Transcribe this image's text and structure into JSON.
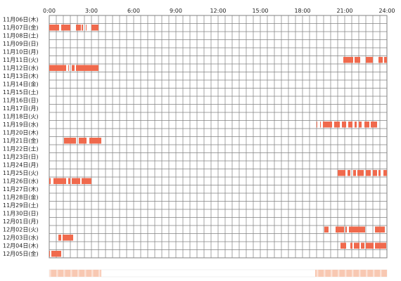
{
  "chart_data": {
    "type": "heatmap",
    "title": "",
    "x_ticks": [
      "0:00",
      "3:00",
      "6:00",
      "9:00",
      "12:00",
      "15:00",
      "18:00",
      "21:00",
      "24:00"
    ],
    "x_range": [
      0,
      24
    ],
    "rows": [
      "11月06日(木)",
      "11月07日(金)",
      "11月08日(土)",
      "11月09日(日)",
      "11月10日(月)",
      "11月11日(火)",
      "11月12日(水)",
      "11月13日(木)",
      "11月14日(金)",
      "11月15日(土)",
      "11月16日(日)",
      "11月17日(月)",
      "11月18日(火)",
      "11月19日(水)",
      "11月20日(木)",
      "11月21日(金)",
      "11月22日(土)",
      "11月23日(日)",
      "11月24日(月)",
      "11月25日(火)",
      "11月26日(水)",
      "11月27日(木)",
      "11月28日(金)",
      "11月29日(土)",
      "11月30日(日)",
      "12月01日(月)",
      "12月02日(火)",
      "12月03日(水)",
      "12月04日(木)",
      "12月05日(金)"
    ],
    "activity_hours": [
      [],
      [
        [
          0.0,
          0.7
        ],
        [
          0.85,
          1.5
        ],
        [
          1.9,
          2.25
        ],
        [
          2.3,
          2.4
        ],
        [
          2.6,
          2.65
        ],
        [
          3.0,
          3.5
        ]
      ],
      [],
      [],
      [],
      [
        [
          20.9,
          21.6
        ],
        [
          21.7,
          22.1
        ],
        [
          22.5,
          23.0
        ],
        [
          23.4,
          23.7
        ],
        [
          23.8,
          24.0
        ]
      ],
      [
        [
          0.0,
          1.2
        ],
        [
          1.35,
          1.4
        ],
        [
          1.6,
          1.8
        ],
        [
          1.9,
          3.5
        ]
      ],
      [],
      [],
      [],
      [],
      [],
      [],
      [
        [
          19.0,
          19.05
        ],
        [
          19.25,
          19.3
        ],
        [
          19.45,
          20.1
        ],
        [
          20.25,
          20.65
        ],
        [
          20.8,
          21.1
        ],
        [
          21.25,
          21.55
        ],
        [
          21.7,
          21.85
        ],
        [
          22.0,
          22.2
        ],
        [
          22.4,
          22.75
        ],
        [
          22.85,
          23.3
        ]
      ],
      [],
      [
        [
          1.05,
          1.9
        ],
        [
          2.1,
          2.65
        ],
        [
          2.85,
          3.7
        ]
      ],
      [],
      [],
      [],
      [
        [
          20.5,
          21.05
        ],
        [
          21.2,
          21.4
        ],
        [
          21.6,
          21.8
        ],
        [
          21.9,
          22.35
        ],
        [
          22.5,
          22.85
        ],
        [
          23.0,
          23.3
        ],
        [
          23.4,
          23.55
        ],
        [
          23.75,
          24.0
        ]
      ],
      [
        [
          0.0,
          0.1
        ],
        [
          0.3,
          1.2
        ],
        [
          1.35,
          1.5
        ],
        [
          1.6,
          2.2
        ],
        [
          2.3,
          3.0
        ]
      ],
      [],
      [],
      [],
      [],
      [],
      [
        [
          19.55,
          19.85
        ],
        [
          20.35,
          20.95
        ],
        [
          21.05,
          21.15
        ],
        [
          21.3,
          22.45
        ],
        [
          23.15,
          23.85
        ]
      ],
      [
        [
          0.65,
          0.85
        ],
        [
          0.95,
          1.7
        ]
      ],
      [
        [
          20.7,
          21.1
        ],
        [
          21.4,
          21.55
        ],
        [
          21.65,
          22.05
        ],
        [
          22.15,
          22.4
        ],
        [
          22.5,
          23.05
        ],
        [
          23.15,
          23.95
        ]
      ],
      [
        [
          0.0,
          0.05
        ],
        [
          0.15,
          0.85
        ]
      ]
    ],
    "summary_bar": {
      "segments_hours": [
        [
          0.0,
          3.7
        ],
        [
          18.9,
          24.0
        ]
      ],
      "color": "#f8c8b2"
    },
    "grid": true,
    "colors": {
      "active": "#f06a4d",
      "grid": "#808080",
      "background": "#ffffff"
    }
  }
}
